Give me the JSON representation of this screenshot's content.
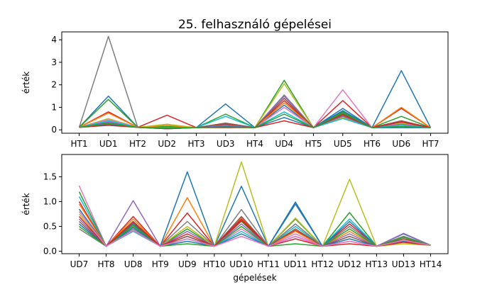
{
  "figure": {
    "title": "25. felhasználó gépelései",
    "xlabel": "gépelések"
  },
  "chart_data": [
    {
      "type": "line",
      "title": "25. felhasználó gépelései",
      "xlabel": "",
      "ylabel": "érték",
      "categories": [
        "HT1",
        "UD1",
        "HT2",
        "UD2",
        "HT3",
        "UD3",
        "HT4",
        "UD4",
        "HT5",
        "UD5",
        "HT6",
        "UD6",
        "HT7"
      ],
      "ylim": [
        -0.15,
        4.35
      ],
      "yticks": [
        0,
        1,
        2,
        3,
        4
      ],
      "grid": false,
      "series": [
        {
          "color": "#7f7f7f",
          "values": [
            0.11,
            4.15,
            0.11,
            0.1,
            0.1,
            0.2,
            0.1,
            1.55,
            0.1,
            0.7,
            0.1,
            0.3,
            0.1
          ]
        },
        {
          "color": "#1f77b4",
          "values": [
            0.11,
            1.5,
            0.11,
            0.1,
            0.1,
            1.15,
            0.1,
            1.1,
            0.1,
            0.95,
            0.1,
            2.63,
            0.1
          ]
        },
        {
          "color": "#2ca02c",
          "values": [
            0.11,
            1.35,
            0.11,
            0.15,
            0.1,
            0.7,
            0.1,
            2.2,
            0.1,
            0.8,
            0.1,
            0.6,
            0.1
          ]
        },
        {
          "color": "#d62728",
          "values": [
            0.11,
            0.8,
            0.11,
            0.65,
            0.1,
            0.25,
            0.1,
            1.3,
            0.1,
            1.3,
            0.1,
            0.95,
            0.1
          ]
        },
        {
          "color": "#ff7f0e",
          "values": [
            0.11,
            0.75,
            0.11,
            0.2,
            0.1,
            0.2,
            0.1,
            1.2,
            0.1,
            0.6,
            0.1,
            1.0,
            0.1
          ]
        },
        {
          "color": "#bcbd22",
          "values": [
            0.11,
            0.5,
            0.11,
            0.25,
            0.1,
            0.3,
            0.1,
            2.05,
            0.1,
            0.55,
            0.1,
            0.3,
            0.1
          ]
        },
        {
          "color": "#e377c2",
          "values": [
            0.11,
            0.45,
            0.11,
            0.1,
            0.1,
            0.15,
            0.1,
            1.0,
            0.1,
            1.78,
            0.1,
            0.4,
            0.1
          ]
        },
        {
          "color": "#9467bd",
          "values": [
            0.11,
            0.35,
            0.11,
            0.1,
            0.1,
            0.2,
            0.1,
            1.5,
            0.1,
            0.6,
            0.1,
            0.25,
            0.1
          ]
        },
        {
          "color": "#17becf",
          "values": [
            0.11,
            0.4,
            0.11,
            0.1,
            0.1,
            0.6,
            0.1,
            0.8,
            0.1,
            0.5,
            0.1,
            0.2,
            0.1
          ]
        },
        {
          "color": "#8c564b",
          "values": [
            0.11,
            0.3,
            0.11,
            0.05,
            0.1,
            0.3,
            0.1,
            1.4,
            0.1,
            0.65,
            0.1,
            0.4,
            0.1
          ]
        },
        {
          "color": "#1f77b4",
          "values": [
            0.11,
            0.25,
            0.11,
            0.05,
            0.1,
            0.15,
            0.1,
            0.55,
            0.1,
            0.85,
            0.1,
            0.1,
            0.1
          ]
        },
        {
          "color": "#d62728",
          "values": [
            0.11,
            0.2,
            0.11,
            0.05,
            0.1,
            0.1,
            0.1,
            0.4,
            0.1,
            0.7,
            0.1,
            0.35,
            0.1
          ]
        },
        {
          "color": "#2ca02c",
          "values": [
            0.11,
            0.28,
            0.11,
            0.08,
            0.1,
            0.12,
            0.1,
            0.7,
            0.1,
            0.75,
            0.1,
            0.15,
            0.1
          ]
        }
      ]
    },
    {
      "type": "line",
      "title": "",
      "xlabel": "gépelések",
      "ylabel": "érték",
      "categories": [
        "UD7",
        "HT8",
        "UD8",
        "HT9",
        "UD9",
        "HT10",
        "UD10",
        "HT11",
        "UD11",
        "HT12",
        "UD12",
        "HT13",
        "UD13",
        "HT14"
      ],
      "ylim": [
        -0.05,
        1.95
      ],
      "yticks": [
        0.0,
        0.5,
        1.0,
        1.5
      ],
      "ytick_labels": [
        "0.0",
        "0.5",
        "1.0",
        "1.5"
      ],
      "grid": false,
      "series": [
        {
          "color": "#e377c2",
          "values": [
            1.32,
            0.1,
            0.5,
            0.1,
            0.3,
            0.1,
            0.45,
            0.1,
            0.35,
            0.1,
            0.2,
            0.1,
            0.2,
            0.12
          ]
        },
        {
          "color": "#2ca02c",
          "values": [
            1.2,
            0.1,
            0.6,
            0.1,
            0.45,
            0.1,
            0.6,
            0.1,
            0.65,
            0.1,
            0.78,
            0.1,
            0.3,
            0.12
          ]
        },
        {
          "color": "#17becf",
          "values": [
            1.1,
            0.1,
            0.4,
            0.1,
            0.25,
            0.1,
            0.4,
            0.1,
            0.5,
            0.1,
            0.65,
            0.1,
            0.2,
            0.12
          ]
        },
        {
          "color": "#d62728",
          "values": [
            1.0,
            0.1,
            0.7,
            0.1,
            0.77,
            0.1,
            0.62,
            0.1,
            0.42,
            0.1,
            0.55,
            0.1,
            0.25,
            0.12
          ]
        },
        {
          "color": "#ff7f0e",
          "values": [
            0.95,
            0.1,
            0.65,
            0.1,
            1.08,
            0.1,
            0.68,
            0.1,
            0.4,
            0.1,
            0.4,
            0.1,
            0.22,
            0.12
          ]
        },
        {
          "color": "#1f77b4",
          "values": [
            0.85,
            0.1,
            0.55,
            0.1,
            1.6,
            0.1,
            1.31,
            0.1,
            0.99,
            0.1,
            0.6,
            0.1,
            0.35,
            0.12
          ]
        },
        {
          "color": "#bcbd22",
          "values": [
            0.75,
            0.1,
            0.5,
            0.1,
            0.5,
            0.1,
            1.8,
            0.1,
            0.67,
            0.1,
            1.45,
            0.1,
            0.15,
            0.12
          ]
        },
        {
          "color": "#9467bd",
          "values": [
            0.65,
            0.1,
            1.02,
            0.1,
            0.4,
            0.1,
            0.55,
            0.1,
            0.3,
            0.1,
            0.35,
            0.1,
            0.36,
            0.12
          ]
        },
        {
          "color": "#8c564b",
          "values": [
            0.6,
            0.1,
            0.6,
            0.1,
            0.3,
            0.1,
            0.7,
            0.1,
            0.45,
            0.1,
            0.3,
            0.1,
            0.25,
            0.12
          ]
        },
        {
          "color": "#7f7f7f",
          "values": [
            0.45,
            0.1,
            0.45,
            0.1,
            0.6,
            0.1,
            0.84,
            0.1,
            0.55,
            0.1,
            0.5,
            0.1,
            0.3,
            0.12
          ]
        },
        {
          "color": "#1f77b4",
          "values": [
            0.55,
            0.1,
            0.48,
            0.1,
            0.2,
            0.1,
            0.35,
            0.1,
            0.95,
            0.1,
            0.25,
            0.1,
            0.2,
            0.12
          ]
        },
        {
          "color": "#2ca02c",
          "values": [
            0.5,
            0.1,
            0.52,
            0.1,
            0.15,
            0.1,
            0.5,
            0.1,
            0.15,
            0.1,
            0.45,
            0.1,
            0.28,
            0.12
          ]
        },
        {
          "color": "#d62728",
          "values": [
            0.7,
            0.1,
            0.58,
            0.1,
            0.35,
            0.1,
            0.65,
            0.1,
            0.25,
            0.1,
            0.15,
            0.1,
            0.18,
            0.12
          ]
        },
        {
          "color": "#e377c2",
          "values": [
            0.8,
            0.1,
            0.42,
            0.1,
            0.25,
            0.1,
            0.3,
            0.1,
            0.3,
            0.1,
            0.2,
            0.1,
            0.22,
            0.12
          ]
        }
      ]
    }
  ]
}
